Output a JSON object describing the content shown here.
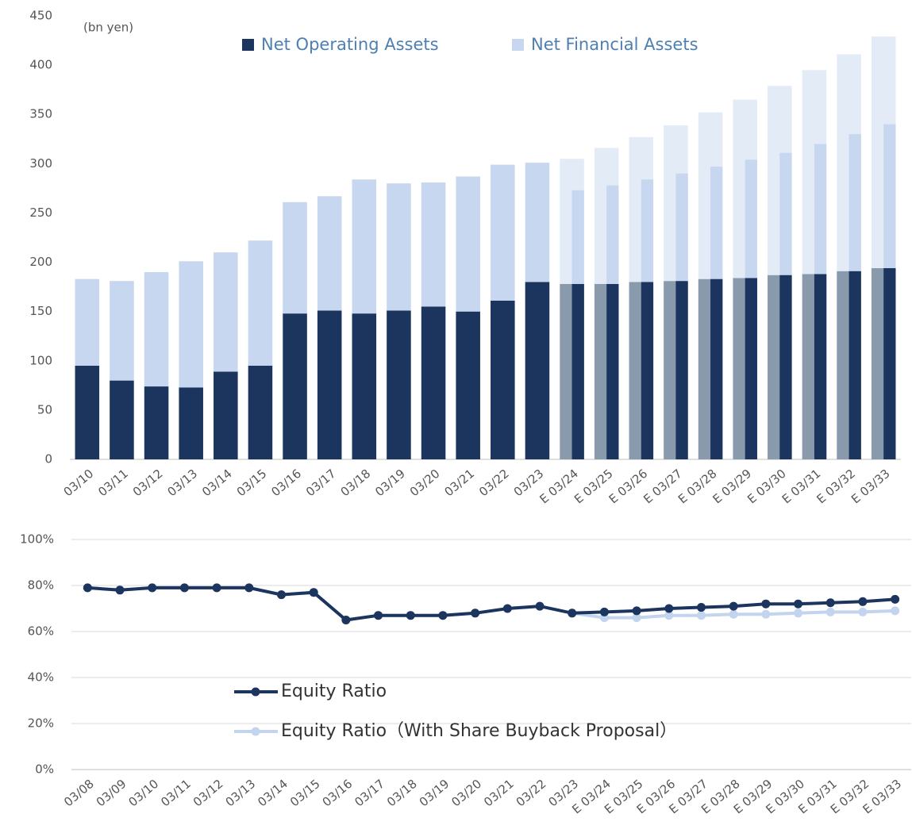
{
  "chart_data": [
    {
      "type": "bar",
      "stacked": true,
      "unit_label": "(bn yen)",
      "legend": "top",
      "grid": false,
      "categories": [
        "03/10",
        "03/11",
        "03/12",
        "03/13",
        "03/14",
        "03/15",
        "03/16",
        "03/17",
        "03/18",
        "03/19",
        "03/20",
        "03/21",
        "03/22",
        "03/23",
        "E 03/24",
        "E 03/25",
        "E 03/26",
        "E 03/27",
        "E 03/28",
        "E 03/29",
        "E 03/30",
        "E 03/31",
        "E 03/32",
        "E 03/33"
      ],
      "ylim": [
        0,
        450
      ],
      "yticks": [
        0,
        50,
        100,
        150,
        200,
        250,
        300,
        350,
        400,
        450
      ],
      "series": [
        {
          "name": "Net Operating Assets",
          "color": "#1b355f",
          "stack": "front",
          "values": [
            95,
            80,
            74,
            73,
            89,
            95,
            148,
            151,
            148,
            151,
            155,
            150,
            161,
            180,
            178,
            178,
            180,
            181,
            183,
            184,
            187,
            188,
            191,
            194
          ]
        },
        {
          "name": "Net Financial Assets",
          "color": "#c6d7ef",
          "stack": "front",
          "values": [
            88,
            101,
            116,
            128,
            121,
            127,
            113,
            116,
            136,
            129,
            126,
            137,
            138,
            121,
            95,
            100,
            104,
            109,
            114,
            120,
            124,
            132,
            139,
            146
          ]
        },
        {
          "color": "#8a9aad",
          "stack": "back",
          "values": [
            null,
            null,
            null,
            null,
            null,
            null,
            null,
            null,
            null,
            null,
            null,
            null,
            null,
            null,
            178,
            178,
            180,
            181,
            183,
            184,
            187,
            188,
            191,
            194
          ]
        },
        {
          "color": "#e3ebf7",
          "stack": "back",
          "values": [
            null,
            null,
            null,
            null,
            null,
            null,
            null,
            null,
            null,
            null,
            null,
            null,
            null,
            null,
            127,
            138,
            147,
            158,
            169,
            181,
            192,
            207,
            220,
            235
          ]
        }
      ]
    },
    {
      "type": "line",
      "legend": "bottom-left",
      "grid": true,
      "categories": [
        "03/08",
        "03/09",
        "03/10",
        "03/11",
        "03/12",
        "03/13",
        "03/14",
        "03/15",
        "03/16",
        "03/17",
        "03/18",
        "03/19",
        "03/20",
        "03/21",
        "03/22",
        "03/23",
        "E 03/24",
        "E 03/25",
        "E 03/26",
        "E 03/27",
        "E 03/28",
        "E 03/29",
        "E 03/30",
        "E 03/31",
        "E 03/32",
        "E 03/33"
      ],
      "ylim": [
        0,
        100
      ],
      "yticks": [
        {
          "value": 0,
          "label": "0%"
        },
        {
          "value": 20,
          "label": "20%"
        },
        {
          "value": 40,
          "label": "40%"
        },
        {
          "value": 60,
          "label": "60%"
        },
        {
          "value": 80,
          "label": "80%"
        },
        {
          "value": 100,
          "label": "100%"
        }
      ],
      "series": [
        {
          "name": "Equity Ratio（With Share Buyback Proposal）",
          "color": "#c3d4ee",
          "values": [
            79,
            78,
            79,
            79,
            79,
            79,
            76,
            77,
            65,
            67,
            67,
            67,
            68,
            70,
            71,
            68,
            66,
            66,
            67,
            67,
            67.5,
            67.5,
            68,
            68.5,
            68.5,
            69
          ]
        },
        {
          "name": "Equity Ratio",
          "color": "#1b355f",
          "values": [
            79,
            78,
            79,
            79,
            79,
            79,
            76,
            77,
            65,
            67,
            67,
            67,
            68,
            70,
            71,
            68,
            68.5,
            69,
            70,
            70.5,
            71,
            72,
            72,
            72.5,
            73,
            74
          ]
        }
      ]
    }
  ]
}
